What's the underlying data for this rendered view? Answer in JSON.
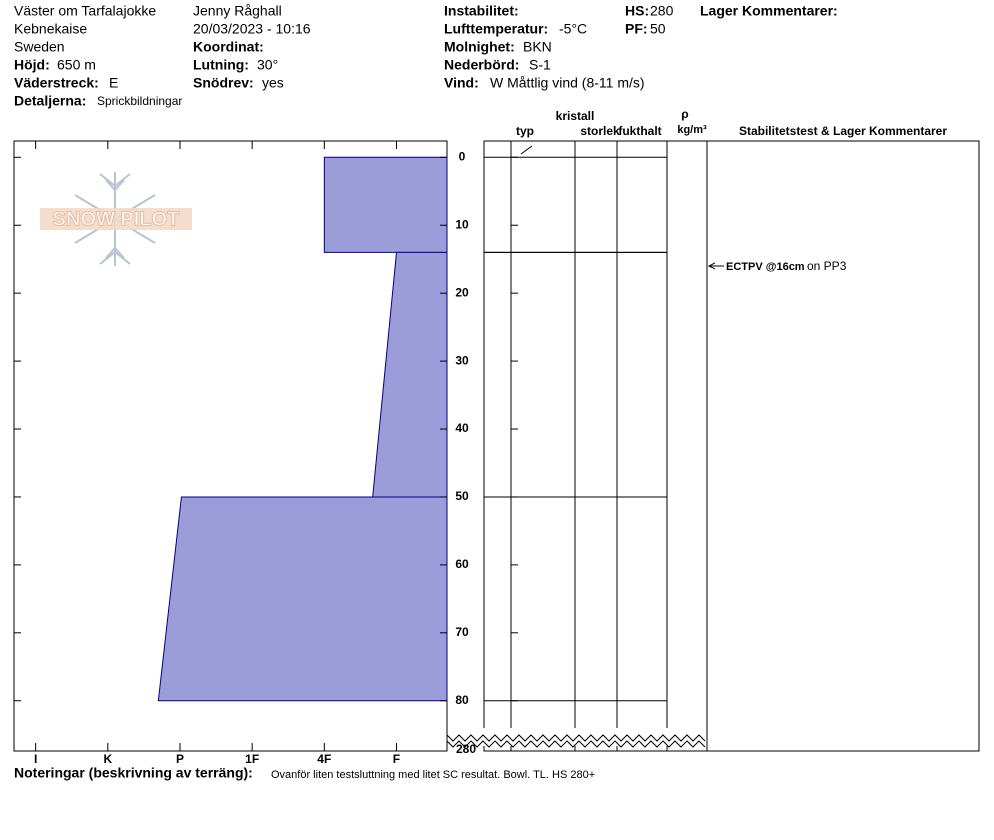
{
  "header": {
    "site": "Väster om Tarfalajokke",
    "region": "Kebnekaise",
    "country": "Sweden",
    "elevation": {
      "label": "Höjd:",
      "value": "650 m"
    },
    "aspect": {
      "label": "Väderstreck:",
      "value": "E"
    },
    "details": {
      "label": "Detaljerna:",
      "value": "Sprickbildningar"
    },
    "observer": "Jenny Råghall",
    "datetime": "20/03/2023 - 10:16",
    "coordinate": {
      "label": "Koordinat:"
    },
    "slope": {
      "label": "Lutning:",
      "value": "30°"
    },
    "wind_loading": {
      "label": "Snödrev:",
      "value": "yes"
    },
    "instability": {
      "label": "Instabilitet:"
    },
    "air_temp": {
      "label": "Lufttemperatur:",
      "value": "-5°C"
    },
    "sky": {
      "label": "Molnighet:",
      "value": "BKN"
    },
    "precip": {
      "label": "Nederbörd:",
      "value": "S-1"
    },
    "wind": {
      "label": "Vind:",
      "value": "W Måttlig vind (8-11 m/s)"
    },
    "hs": {
      "label": "HS:",
      "value": "280"
    },
    "pf": {
      "label": "PF:",
      "value": "50"
    },
    "layer_comments": "Lager Kommentarer:"
  },
  "logo": "SNOW PILOT",
  "chart_data": {
    "type": "snow-profile",
    "color": "#9c9cd8",
    "edge_color": "#00008b",
    "xlim": [
      6.3,
      0.3
    ],
    "xticks": [
      {
        "value": 6,
        "label": "I"
      },
      {
        "value": 5,
        "label": "K"
      },
      {
        "value": 4,
        "label": "P"
      },
      {
        "value": 3,
        "label": "1F"
      },
      {
        "value": 2,
        "label": "4F"
      },
      {
        "value": 1,
        "label": "F"
      }
    ],
    "ylim": [
      -2.4,
      87.4
    ],
    "yticks": [
      0,
      10,
      20,
      30,
      40,
      50,
      60,
      70,
      80
    ],
    "hs": 280,
    "layers": [
      {
        "top": 0,
        "bottom": 14,
        "hardness_top": 2,
        "hardness_bottom": 2
      },
      {
        "top": 14,
        "bottom": 50,
        "hardness_top": 1,
        "hardness_bottom": 1.33
      },
      {
        "top": 50,
        "bottom": 80,
        "hardness_top": 3.98,
        "hardness_bottom": 4.3
      }
    ],
    "columns": [
      "typ",
      "kristall",
      "storlek",
      "fukthalt",
      "ρ",
      "kg/m³",
      "Stabilitetstest & Lager Kommentarer"
    ],
    "tests": [
      {
        "depth": 16,
        "label": "ECTPV @16cm",
        "note": "on PP3"
      }
    ]
  },
  "footer": {
    "label": "Noteringar (beskrivning av terräng):",
    "text": "Ovanför liten testsluttning med litet SC resultat. Bowl. TL. HS 280+"
  }
}
